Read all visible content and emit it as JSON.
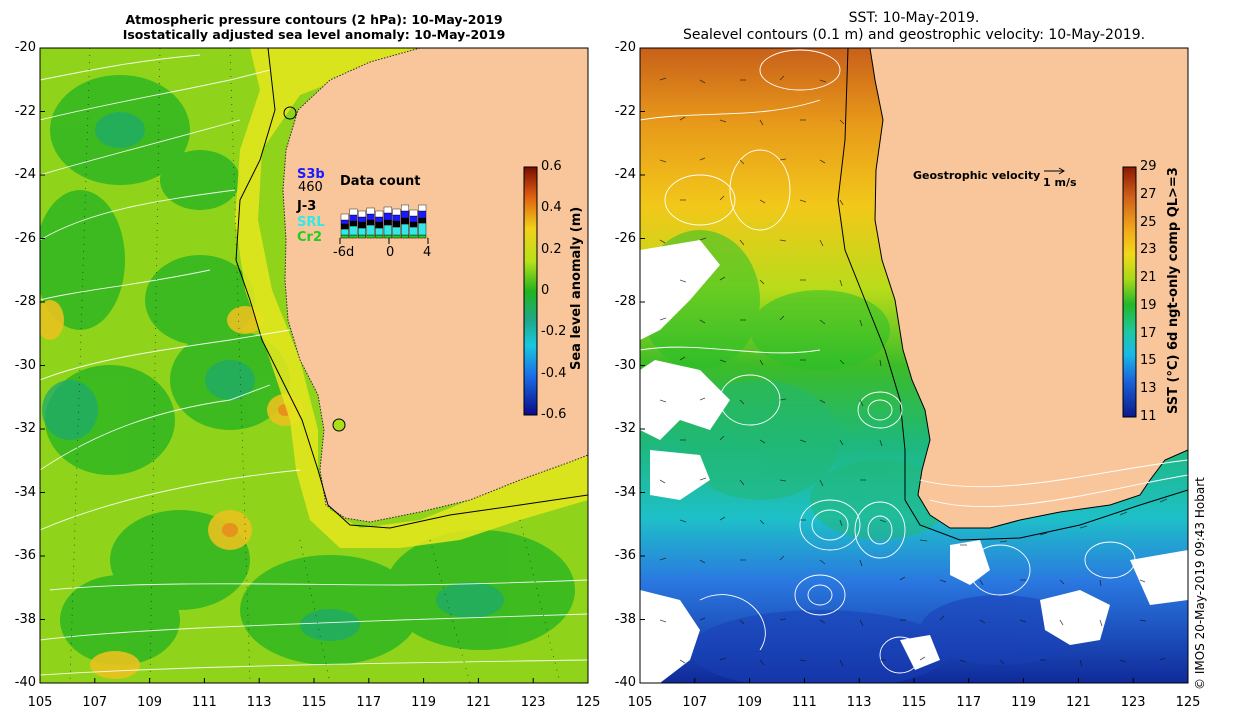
{
  "left_panel": {
    "title_line1": "Atmospheric pressure contours (2 hPa): 10-May-2019",
    "title_line2": "Isostatically adjusted sea level anomaly: 10-May-2019",
    "colorbar_label": "Sea level anomaly (m)",
    "colorbar_ticks": [
      "0.6",
      "0.4",
      "0.2",
      "0",
      "-0.2",
      "-0.4",
      "-0.6"
    ],
    "inset": {
      "title": "Data count",
      "count": "460",
      "missions": [
        "S3b",
        "J-3",
        "SRL",
        "Cr2"
      ],
      "mission_colors": [
        "#1a1aff",
        "#000000",
        "#33e8e8",
        "#22cc22"
      ],
      "x_ticks": [
        "-6d",
        "0",
        "4"
      ]
    }
  },
  "right_panel": {
    "title_line1": "SST: 10-May-2019.",
    "title_line2": "Sealevel contours (0.1 m) and geostrophic velocity: 10-May-2019.",
    "velocity_legend": "Geostrophic velocity",
    "velocity_scale": "1 m/s",
    "colorbar_label": "SST (°C) 6d ngt-only comp QL>=3",
    "colorbar_ticks": [
      "29",
      "27",
      "25",
      "23",
      "21",
      "19",
      "17",
      "15",
      "13",
      "11"
    ]
  },
  "y_ticks": [
    "-20",
    "-22",
    "-24",
    "-26",
    "-28",
    "-30",
    "-32",
    "-34",
    "-36",
    "-38",
    "-40"
  ],
  "x_ticks": [
    "105",
    "107",
    "109",
    "111",
    "113",
    "115",
    "117",
    "119",
    "121",
    "123",
    "125"
  ],
  "credit": "© IMOS 20-May-2019 09:43 Hobart",
  "colors": {
    "land": "#f9c69b",
    "coast": "#000000"
  }
}
